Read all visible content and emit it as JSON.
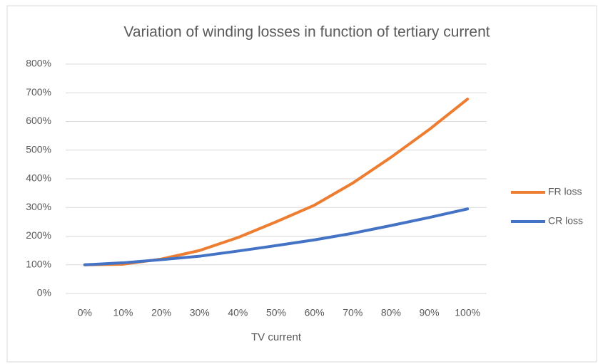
{
  "chart_data": {
    "type": "line",
    "title": "Variation of winding losses in function of tertiary current",
    "x_label": "TV current",
    "categories": [
      "0%",
      "10%",
      "20%",
      "30%",
      "40%",
      "50%",
      "60%",
      "70%",
      "80%",
      "90%",
      "100%"
    ],
    "series": [
      {
        "name": "FR loss",
        "color": "#ed7d31",
        "values": [
          100,
          102,
          120,
          150,
          195,
          250,
          308,
          385,
          475,
          572,
          678
        ]
      },
      {
        "name": "CR loss",
        "color": "#4472c4",
        "values": [
          100,
          107,
          118,
          130,
          148,
          167,
          187,
          210,
          237,
          265,
          295
        ]
      }
    ],
    "ylim": [
      0,
      800
    ],
    "yticks": [
      {
        "value": 0,
        "label": "0%"
      },
      {
        "value": 100,
        "label": "100%"
      },
      {
        "value": 200,
        "label": "200%"
      },
      {
        "value": 300,
        "label": "300%"
      },
      {
        "value": 400,
        "label": "400%"
      },
      {
        "value": 500,
        "label": "500%"
      },
      {
        "value": 600,
        "label": "600%"
      },
      {
        "value": 700,
        "label": "700%"
      },
      {
        "value": 800,
        "label": "800%"
      }
    ],
    "grid": true,
    "legend": "right"
  }
}
